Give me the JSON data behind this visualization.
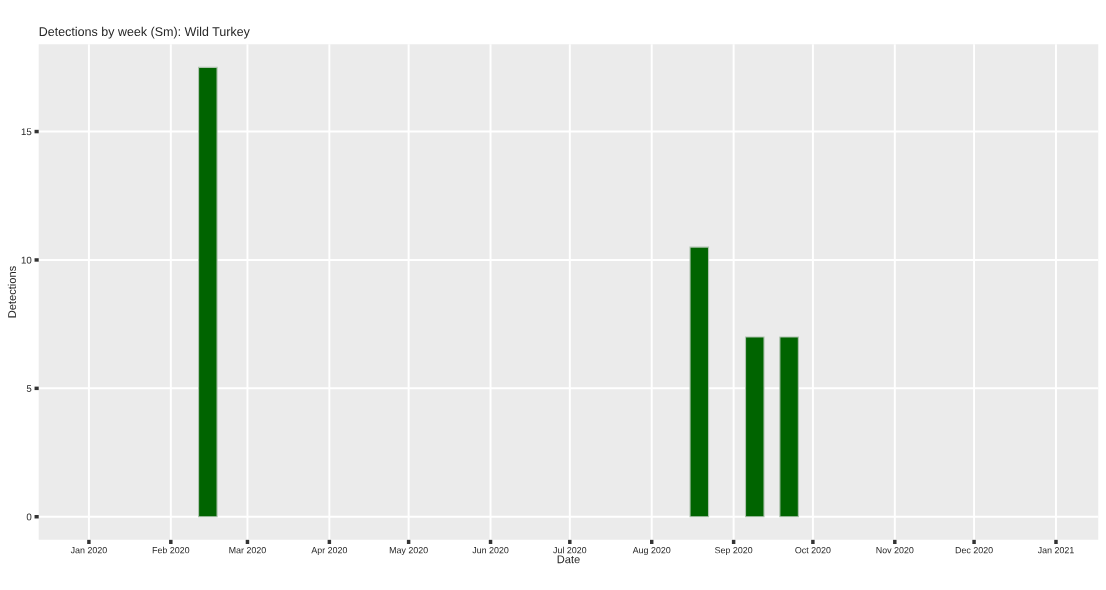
{
  "chart_data": {
    "type": "bar",
    "title": "Detections by week (Sm): Wild Turkey",
    "xlabel": "Date",
    "ylabel": "Detections",
    "x": [
      "2020-02-15",
      "2020-08-19",
      "2020-09-09",
      "2020-09-22"
    ],
    "values": [
      17.5,
      10.5,
      7,
      7
    ],
    "color": "#006400",
    "xlim": [
      "2019-12-13",
      "2021-01-17"
    ],
    "xticks": [
      {
        "value": "2020-01-01",
        "label": "Jan 2020"
      },
      {
        "value": "2020-02-01",
        "label": "Feb 2020"
      },
      {
        "value": "2020-03-01",
        "label": "Mar 2020"
      },
      {
        "value": "2020-04-01",
        "label": "Apr 2020"
      },
      {
        "value": "2020-05-01",
        "label": "May 2020"
      },
      {
        "value": "2020-06-01",
        "label": "Jun 2020"
      },
      {
        "value": "2020-07-01",
        "label": "Jul 2020"
      },
      {
        "value": "2020-08-01",
        "label": "Aug 2020"
      },
      {
        "value": "2020-09-01",
        "label": "Sep 2020"
      },
      {
        "value": "2020-10-01",
        "label": "Oct 2020"
      },
      {
        "value": "2020-11-01",
        "label": "Nov 2020"
      },
      {
        "value": "2020-12-01",
        "label": "Dec 2020"
      },
      {
        "value": "2021-01-01",
        "label": "Jan 2021"
      }
    ],
    "ylim": [
      -0.9,
      18.4
    ],
    "yticks": [
      0,
      5,
      10,
      15
    ],
    "grid": true
  }
}
